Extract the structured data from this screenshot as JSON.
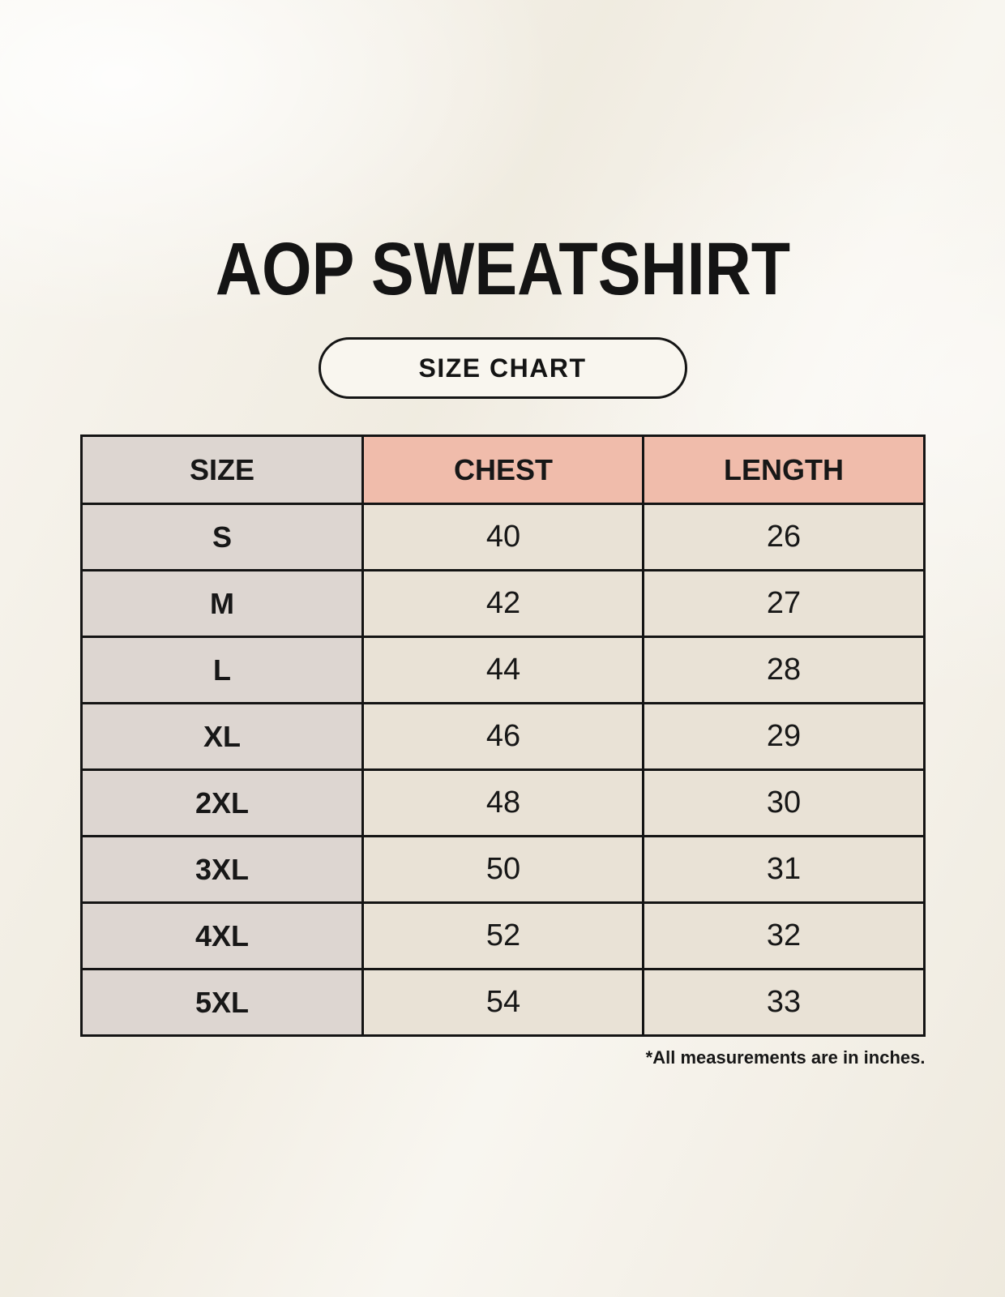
{
  "page": {
    "title": "AOP SWEATSHIRT",
    "badge_label": "SIZE CHART",
    "footnote": "*All measurements are in inches."
  },
  "colors": {
    "page_background": "#f4f0e6",
    "header_accent": "#f0bcab",
    "label_column_bg": "#ddd6d1",
    "data_cell_bg": "#e9e2d6",
    "table_border": "#141414",
    "text": "#171717",
    "badge_background": "#f9f6ef"
  },
  "table": {
    "columns": [
      "SIZE",
      "CHEST",
      "LENGTH"
    ],
    "rows": [
      {
        "size": "S",
        "chest": "40",
        "length": "26"
      },
      {
        "size": "M",
        "chest": "42",
        "length": "27"
      },
      {
        "size": "L",
        "chest": "44",
        "length": "28"
      },
      {
        "size": "XL",
        "chest": "46",
        "length": "29"
      },
      {
        "size": "2XL",
        "chest": "48",
        "length": "30"
      },
      {
        "size": "3XL",
        "chest": "50",
        "length": "31"
      },
      {
        "size": "4XL",
        "chest": "52",
        "length": "32"
      },
      {
        "size": "5XL",
        "chest": "54",
        "length": "33"
      }
    ]
  },
  "chart_data": {
    "type": "table",
    "title": "AOP SWEATSHIRT",
    "subtitle": "SIZE CHART",
    "columns": [
      "SIZE",
      "CHEST",
      "LENGTH"
    ],
    "rows": [
      [
        "S",
        40,
        26
      ],
      [
        "M",
        42,
        27
      ],
      [
        "L",
        44,
        28
      ],
      [
        "XL",
        46,
        29
      ],
      [
        "2XL",
        48,
        30
      ],
      [
        "3XL",
        50,
        31
      ],
      [
        "4XL",
        52,
        32
      ],
      [
        "5XL",
        54,
        33
      ]
    ],
    "units": "inches",
    "note": "*All measurements are in inches."
  }
}
